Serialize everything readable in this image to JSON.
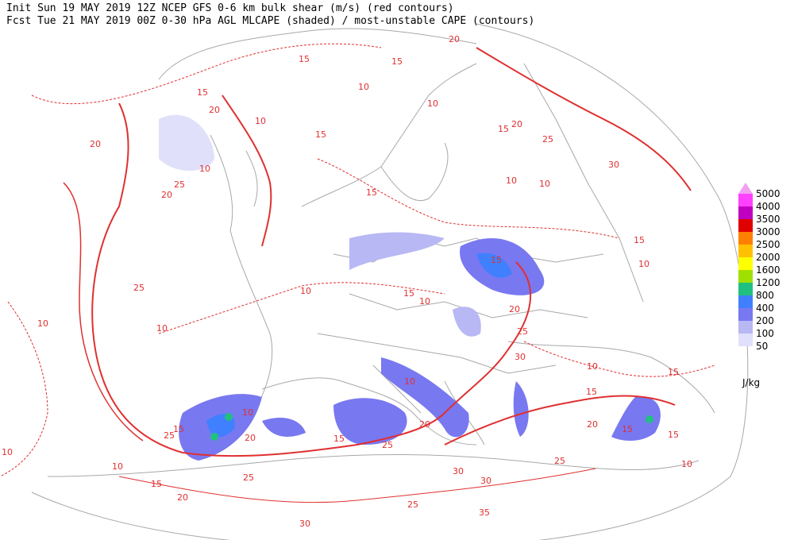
{
  "header": {
    "line1": "Init  Sun 19 MAY 2019 12Z  NCEP GFS 0-6 km bulk shear (m/s) (red contours)",
    "line2": "Fcst Tue 21 MAY 2019 00Z  0-30 hPa AGL MLCAPE (shaded) / most-unstable CAPE (contours)"
  },
  "legend": {
    "levels": [
      "5000",
      "4000",
      "3500",
      "3000",
      "2500",
      "2000",
      "1600",
      "1200",
      "800",
      "400",
      "200",
      "100",
      "50"
    ],
    "unit": "J/kg"
  },
  "contour_labels": [
    "15",
    "15",
    "20",
    "10",
    "10",
    "15",
    "20",
    "10",
    "15",
    "20",
    "10",
    "25",
    "20",
    "15",
    "10",
    "10",
    "15",
    "20",
    "25",
    "30",
    "15",
    "10",
    "15",
    "10",
    "15",
    "10",
    "20",
    "25",
    "10",
    "25",
    "10",
    "30",
    "10",
    "15",
    "15",
    "10",
    "10",
    "15",
    "25",
    "20",
    "15",
    "20",
    "25",
    "20",
    "15",
    "15",
    "10",
    "10",
    "15",
    "25",
    "30",
    "30",
    "25",
    "20",
    "25",
    "35",
    "30",
    "10"
  ]
}
